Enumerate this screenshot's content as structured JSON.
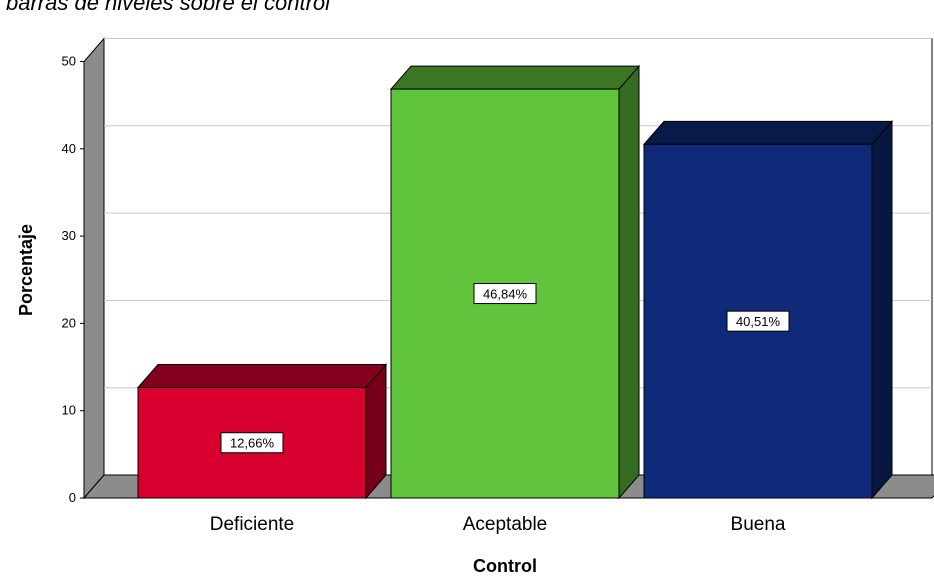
{
  "chart_data": {
    "type": "bar",
    "title": "barras de niveles sobre el control",
    "categories": [
      "Deficiente",
      "Aceptable",
      "Buena"
    ],
    "values": [
      12.66,
      46.84,
      40.51
    ],
    "data_labels": [
      "12,66%",
      "46,84%",
      "40,51%"
    ],
    "xlabel": "Control",
    "ylabel": "Porcentaje",
    "ylim": [
      0,
      50
    ],
    "yticks": [
      "0",
      "10",
      "20",
      "30",
      "40",
      "50"
    ],
    "grid": true,
    "style_3d": true,
    "colors": {
      "Deficiente": "#d8002e",
      "Aceptable": "#60c43c",
      "Buena": "#0f2a78"
    }
  }
}
